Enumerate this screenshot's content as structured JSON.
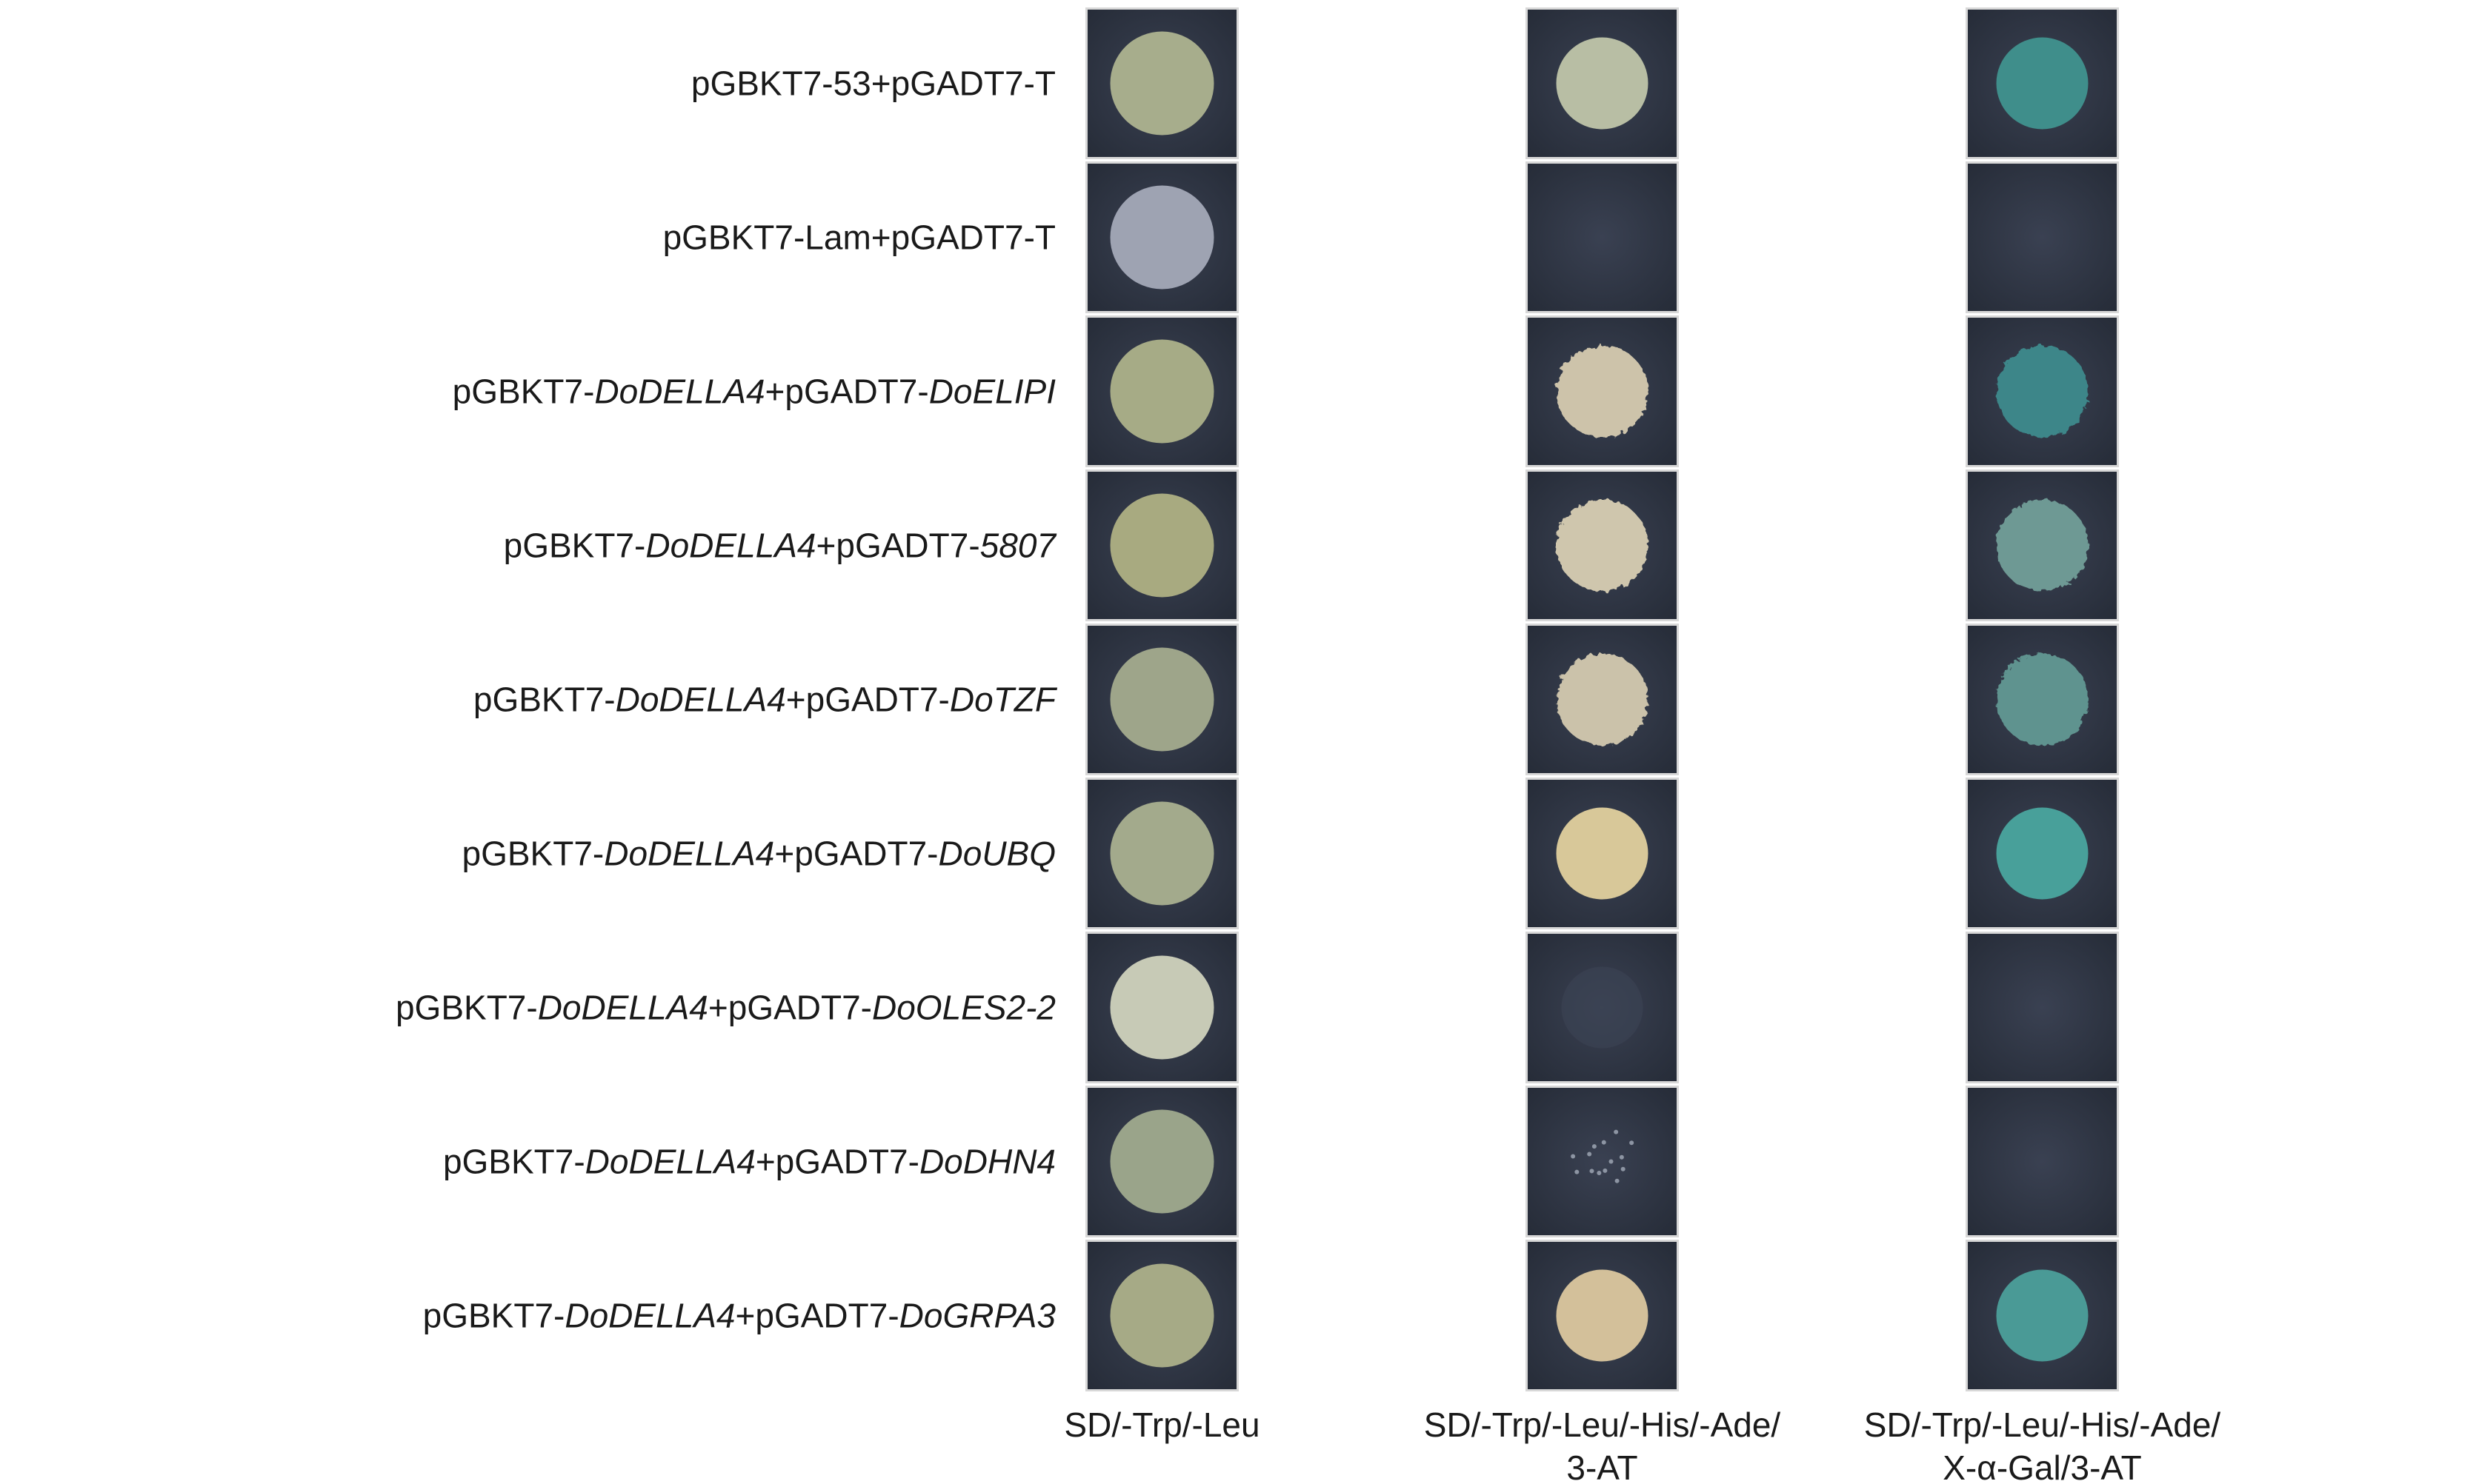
{
  "rows": [
    {
      "segments": [
        {
          "text": "pGBKT7-53+pGADT7-T",
          "style": "normal"
        }
      ]
    },
    {
      "segments": [
        {
          "text": "pGBKT7-Lam+pGADT7-T",
          "style": "normal"
        }
      ]
    },
    {
      "segments": [
        {
          "text": "pGBKT7-",
          "style": "normal"
        },
        {
          "text": "DoDELLA4",
          "style": "italic"
        },
        {
          "text": "+pGADT7-",
          "style": "normal"
        },
        {
          "text": "DoELIPI",
          "style": "italic"
        }
      ]
    },
    {
      "segments": [
        {
          "text": "pGBKT7-",
          "style": "normal"
        },
        {
          "text": "DoDELLA4",
          "style": "italic"
        },
        {
          "text": "+pGADT7-",
          "style": "normal"
        },
        {
          "text": "5807",
          "style": "italic"
        }
      ]
    },
    {
      "segments": [
        {
          "text": "pGBKT7-",
          "style": "normal"
        },
        {
          "text": "DoDELLA4",
          "style": "italic"
        },
        {
          "text": "+pGADT7-",
          "style": "normal"
        },
        {
          "text": "DoTZF",
          "style": "italic"
        }
      ]
    },
    {
      "segments": [
        {
          "text": "pGBKT7-",
          "style": "normal"
        },
        {
          "text": "DoDELLA4",
          "style": "italic"
        },
        {
          "text": "+pGADT7-",
          "style": "normal"
        },
        {
          "text": "DoUBQ",
          "style": "italic"
        }
      ]
    },
    {
      "segments": [
        {
          "text": "pGBKT7-",
          "style": "normal"
        },
        {
          "text": "DoDELLA4",
          "style": "italic"
        },
        {
          "text": "+pGADT7-",
          "style": "normal"
        },
        {
          "text": "DoOLES2-2",
          "style": "italic"
        }
      ]
    },
    {
      "segments": [
        {
          "text": "pGBKT7-",
          "style": "normal"
        },
        {
          "text": "DoDELLA4",
          "style": "italic"
        },
        {
          "text": "+pGADT7-",
          "style": "normal"
        },
        {
          "text": "DoDHN4",
          "style": "italic"
        }
      ]
    },
    {
      "segments": [
        {
          "text": "pGBKT7-",
          "style": "normal"
        },
        {
          "text": "DoDELLA4",
          "style": "italic"
        },
        {
          "text": "+pGADT7-",
          "style": "normal"
        },
        {
          "text": "DoGRPA3",
          "style": "italic"
        }
      ]
    }
  ],
  "columns": [
    {
      "lines": [
        "SD/-Trp/-Leu"
      ]
    },
    {
      "lines": [
        "SD/-Trp/-Leu/-His/-Ade/",
        "3-AT"
      ]
    },
    {
      "lines": [
        "SD/-Trp/-Leu/-His/-Ade/",
        "X-α-Gal/3-AT"
      ]
    }
  ]
}
